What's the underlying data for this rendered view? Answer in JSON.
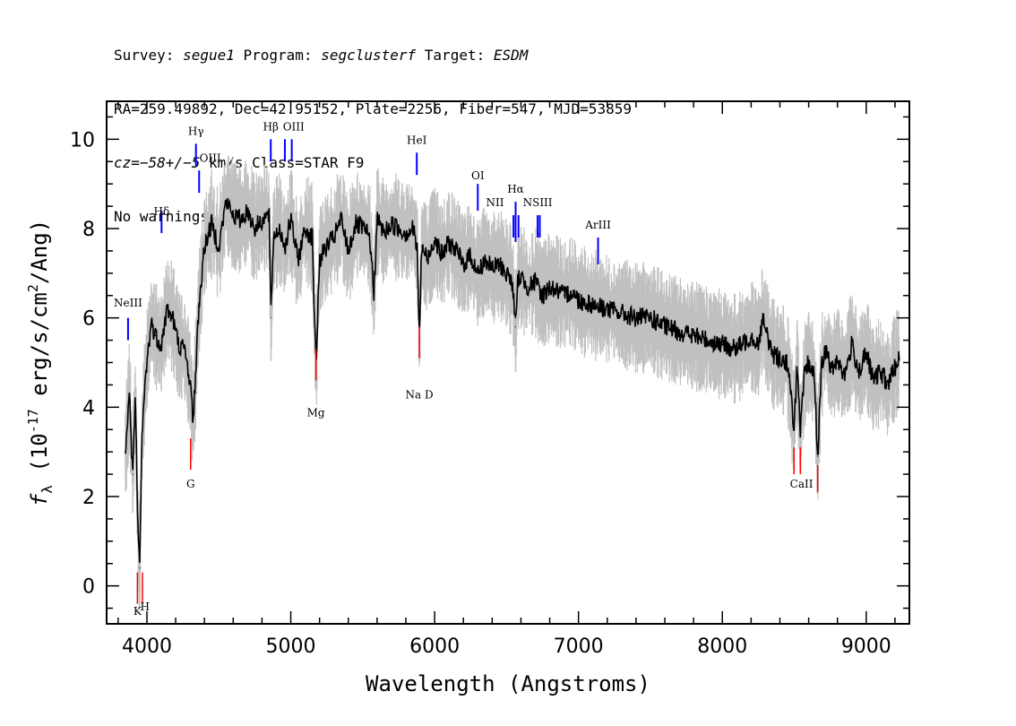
{
  "header": {
    "line1": {
      "survey_label": "Survey: ",
      "survey": "segue1",
      "program_label": " Program: ",
      "program": "segclusterf",
      "target_label": " Target: ",
      "target": "ESDM"
    },
    "line2": "RA=259.49892, Dec=42.95152, Plate=2256, Fiber=547, MJD=53859",
    "line3": {
      "cz_label": "cz",
      "cz_value": "=−58+/−5",
      "cz_rest": " km/s Class=STAR F9"
    },
    "line4": "No warnings."
  },
  "chart_data": {
    "type": "line",
    "xlabel": "Wavelength (Angstroms)",
    "ylabel": "f_λ (10^-17 erg/s/cm^2/Ang)",
    "xlim": [
      3720,
      9300
    ],
    "ylim": [
      -0.85,
      10.85
    ],
    "xticks": [
      4000,
      5000,
      6000,
      7000,
      8000,
      9000
    ],
    "yticks": [
      0,
      2,
      4,
      6,
      8,
      10
    ],
    "colors": {
      "flux": "#000000",
      "error_band": "#c0c0c0",
      "emission": "#0000ff",
      "absorption": "#ff0000"
    },
    "series": [
      {
        "style": "smoothed-black",
        "x": [
          3850,
          3880,
          3900,
          3920,
          3935,
          3950,
          3965,
          3980,
          4000,
          4030,
          4060,
          4100,
          4140,
          4180,
          4220,
          4260,
          4300,
          4320,
          4340,
          4360,
          4400,
          4450,
          4500,
          4550,
          4600,
          4650,
          4700,
          4750,
          4800,
          4850,
          4861,
          4880,
          4920,
          4960,
          5000,
          5050,
          5100,
          5150,
          5175,
          5200,
          5250,
          5300,
          5350,
          5400,
          5450,
          5500,
          5550,
          5577,
          5600,
          5650,
          5700,
          5750,
          5800,
          5850,
          5880,
          5893,
          5910,
          5950,
          6000,
          6050,
          6100,
          6150,
          6200,
          6250,
          6300,
          6350,
          6400,
          6450,
          6500,
          6540,
          6563,
          6580,
          6600,
          6650,
          6700,
          6750,
          6800,
          6850,
          6900,
          6950,
          7000,
          7100,
          7200,
          7300,
          7400,
          7500,
          7600,
          7700,
          7800,
          7900,
          8000,
          8100,
          8200,
          8250,
          8280,
          8300,
          8350,
          8400,
          8450,
          8498,
          8520,
          8542,
          8570,
          8600,
          8640,
          8662,
          8690,
          8720,
          8760,
          8800,
          8850,
          8900,
          8950,
          9000,
          9050,
          9100,
          9150,
          9200,
          9230
        ],
        "y": [
          3.0,
          4.3,
          2.5,
          4.2,
          1.5,
          0.4,
          3.2,
          4.2,
          5.0,
          5.9,
          5.6,
          5.4,
          6.2,
          6.0,
          5.4,
          5.3,
          4.6,
          3.7,
          4.8,
          6.2,
          7.6,
          8.1,
          7.6,
          8.6,
          8.3,
          8.2,
          8.4,
          8.0,
          8.2,
          8.3,
          6.0,
          7.8,
          8.0,
          7.6,
          8.2,
          7.3,
          8.0,
          7.8,
          4.9,
          7.3,
          7.6,
          7.8,
          8.2,
          7.5,
          8.1,
          8.0,
          7.8,
          6.5,
          8.2,
          7.9,
          8.1,
          8.0,
          7.9,
          8.0,
          7.5,
          5.5,
          7.6,
          7.3,
          7.8,
          7.4,
          7.7,
          7.5,
          7.2,
          7.4,
          7.0,
          7.3,
          7.1,
          7.2,
          7.0,
          6.8,
          5.8,
          6.9,
          6.9,
          6.7,
          6.8,
          6.5,
          6.7,
          6.6,
          6.5,
          6.6,
          6.4,
          6.3,
          6.2,
          6.1,
          6.0,
          6.0,
          5.8,
          5.7,
          5.6,
          5.5,
          5.4,
          5.3,
          5.6,
          5.4,
          6.0,
          5.7,
          5.2,
          5.1,
          5.0,
          3.6,
          4.9,
          3.4,
          4.7,
          5.0,
          4.7,
          2.9,
          4.9,
          5.3,
          4.8,
          5.1,
          4.7,
          5.4,
          4.8,
          5.2,
          4.6,
          4.8,
          4.5,
          4.9,
          5.1
        ]
      }
    ],
    "emission_lines": [
      {
        "name": "NeIII",
        "x": 3869,
        "y1": 6.0,
        "y2": 5.5
      },
      {
        "name": "Hδ",
        "x": 4102,
        "y1": 8.4,
        "y2": 7.9
      },
      {
        "name": "Hγ",
        "x": 4341,
        "y1": 9.9,
        "y2": 9.4
      },
      {
        "name": "OIII",
        "x": 4363,
        "y1": 9.3,
        "y2": 8.8
      },
      {
        "name": "Hβ",
        "x": 4861,
        "y1": 10.0,
        "y2": 9.5
      },
      {
        "name": "OIII",
        "x": 4959,
        "y1": 10.0,
        "y2": 9.5
      },
      {
        "name": "OIII",
        "x": 5007,
        "y1": 10.0,
        "y2": 9.5
      },
      {
        "name": "HeI",
        "x": 5876,
        "y1": 9.7,
        "y2": 9.2
      },
      {
        "name": "OI",
        "x": 6300,
        "y1": 9.0,
        "y2": 8.4
      },
      {
        "name": "NII",
        "x": 6548,
        "y1": 8.3,
        "y2": 7.8
      },
      {
        "name": "Hα",
        "x": 6563,
        "y1": 8.6,
        "y2": 7.7
      },
      {
        "name": "NII",
        "x": 6583,
        "y1": 8.3,
        "y2": 7.8
      },
      {
        "name": "SII",
        "x": 6716,
        "y1": 8.3,
        "y2": 7.8
      },
      {
        "name": "SII",
        "x": 6731,
        "y1": 8.3,
        "y2": 7.8
      },
      {
        "name": "ArIII",
        "x": 7136,
        "y1": 7.8,
        "y2": 7.2
      }
    ],
    "absorption_lines": [
      {
        "name": "K",
        "x": 3934,
        "y1": -0.4,
        "y2": 0.3
      },
      {
        "name": "H",
        "x": 3969,
        "y1": -0.4,
        "y2": 0.3
      },
      {
        "name": "G",
        "x": 4304,
        "y1": 2.6,
        "y2": 3.3
      },
      {
        "name": "Mg",
        "x": 5175,
        "y1": 4.6,
        "y2": 5.3
      },
      {
        "name": "Na D",
        "x": 5894,
        "y1": 5.1,
        "y2": 5.8
      },
      {
        "name": "CaII",
        "x": 8498,
        "y1": 2.5,
        "y2": 3.1
      },
      {
        "name": "CaII",
        "x": 8542,
        "y1": 2.5,
        "y2": 3.1
      },
      {
        "name": "CaII",
        "x": 8662,
        "y1": 2.1,
        "y2": 2.7
      }
    ],
    "line_labels": [
      {
        "text": "NeIII",
        "x": 3869,
        "y": 6.25
      },
      {
        "text": "Hδ",
        "x": 4102,
        "y": 8.3
      },
      {
        "text": "Hγ",
        "x": 4341,
        "y": 10.1
      },
      {
        "text": "OIII",
        "x": 4440,
        "y": 9.5
      },
      {
        "text": "Hβ",
        "x": 4861,
        "y": 10.2
      },
      {
        "text": "OIII",
        "x": 5020,
        "y": 10.2
      },
      {
        "text": "HeI",
        "x": 5876,
        "y": 9.9
      },
      {
        "text": "OI",
        "x": 6300,
        "y": 9.1
      },
      {
        "text": "NII",
        "x": 6420,
        "y": 8.5
      },
      {
        "text": "Hα",
        "x": 6563,
        "y": 8.8
      },
      {
        "text": "NSIII",
        "x": 6716,
        "y": 8.5
      },
      {
        "text": "ArIII",
        "x": 7136,
        "y": 8.0
      },
      {
        "text": "K",
        "x": 3934,
        "y": -0.65
      },
      {
        "text": "H",
        "x": 3986,
        "y": -0.55
      },
      {
        "text": "G",
        "x": 4304,
        "y": 2.2
      },
      {
        "text": "Mg",
        "x": 5175,
        "y": 3.8
      },
      {
        "text": "Na D",
        "x": 5894,
        "y": 4.2
      },
      {
        "text": "CaII",
        "x": 8550,
        "y": 2.2
      }
    ]
  }
}
